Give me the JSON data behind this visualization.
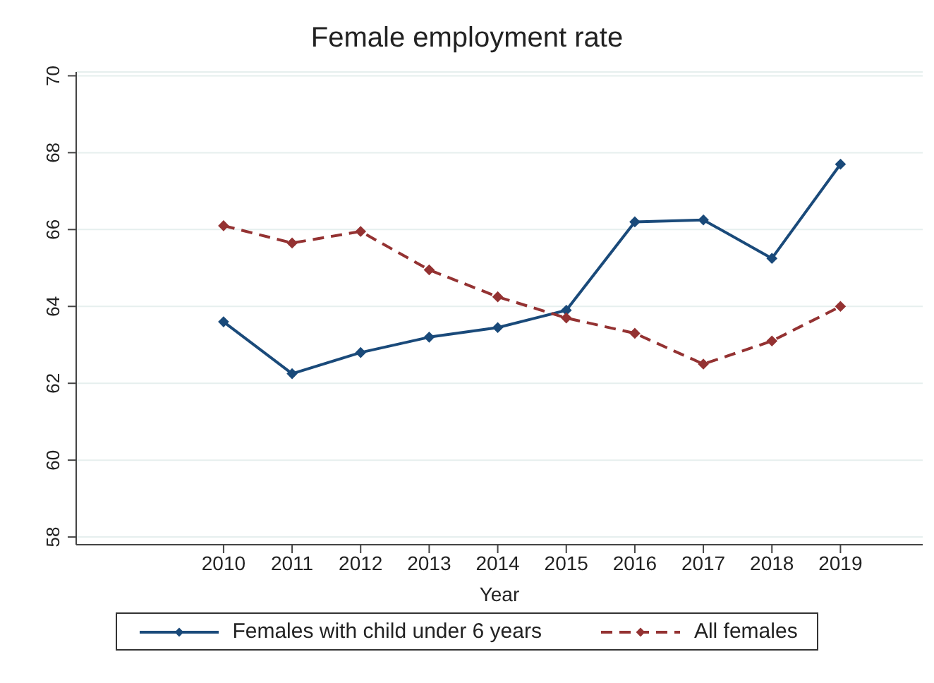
{
  "chart_data": {
    "type": "line",
    "title": "Female employment rate",
    "xlabel": "Year",
    "x": [
      2010,
      2011,
      2012,
      2013,
      2014,
      2015,
      2016,
      2017,
      2018,
      2019
    ],
    "series": [
      {
        "name": "Females with child under 6 years",
        "color": "#1a4a7a",
        "values": [
          63.6,
          62.25,
          62.8,
          63.2,
          63.45,
          63.9,
          66.2,
          66.25,
          65.25,
          67.7
        ],
        "line_style": "solid"
      },
      {
        "name": "All females",
        "color": "#943232",
        "values": [
          66.1,
          65.65,
          65.95,
          64.95,
          64.25,
          63.7,
          63.3,
          62.5,
          63.1,
          64.0
        ],
        "line_style": "dashed"
      }
    ],
    "xlim": [
      2007.85,
      2020.2
    ],
    "xticks": [
      2010,
      2011,
      2012,
      2013,
      2014,
      2015,
      2016,
      2017,
      2018,
      2019
    ],
    "ylim": [
      57.8,
      70.1
    ],
    "yticks": [
      58,
      60,
      62,
      64,
      66,
      68,
      70
    ],
    "grid": "y",
    "legend": "bottom",
    "marker": "diamond"
  }
}
